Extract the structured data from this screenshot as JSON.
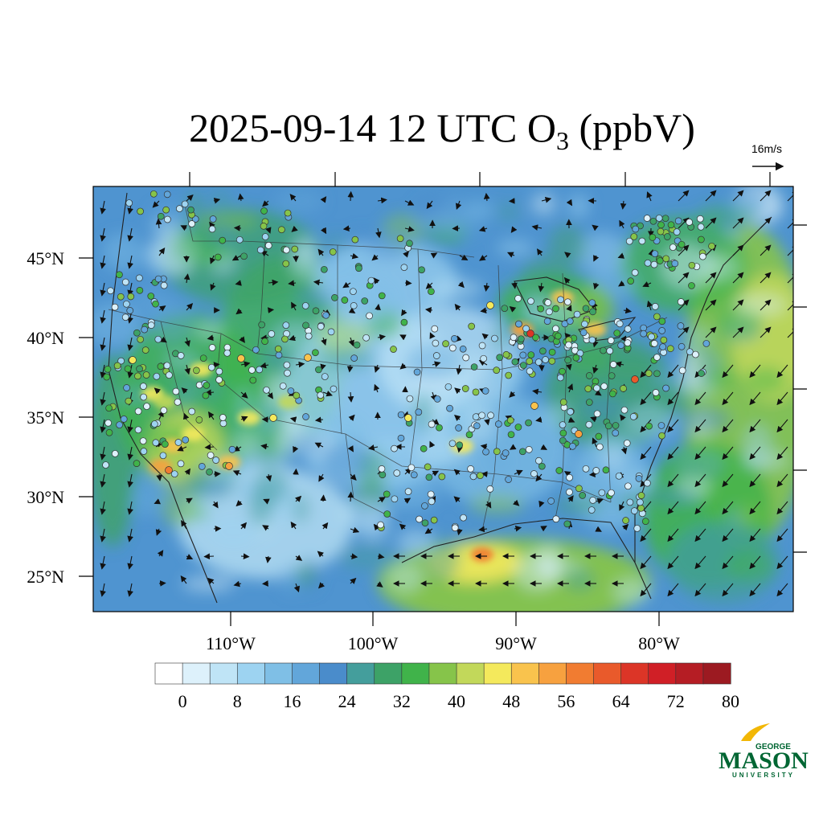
{
  "title": {
    "prefix": "2025-09-14 12 UTC O",
    "subscript": "3",
    "suffix": " (ppbV)"
  },
  "reference_vector": {
    "label": "16m/s"
  },
  "latitude_labels": [
    "25°N",
    "30°N",
    "35°N",
    "40°N",
    "45°N"
  ],
  "longitude_labels": [
    "110°W",
    "100°W",
    "90°W",
    "80°W"
  ],
  "colorbar": {
    "colors": [
      "#ffffff",
      "#ddf1fb",
      "#bfe4f6",
      "#9dd3f1",
      "#7fbfe6",
      "#62a6da",
      "#4a8ccb",
      "#449e9c",
      "#3da267",
      "#40b34a",
      "#86c44a",
      "#c2d85a",
      "#f4e95c",
      "#f9c34d",
      "#f7a13f",
      "#f17c31",
      "#e95a2b",
      "#dc3527",
      "#d01f26",
      "#b51d24",
      "#9c1a21"
    ],
    "tick_labels": [
      "0",
      "8",
      "16",
      "24",
      "32",
      "40",
      "48",
      "56",
      "64",
      "72",
      "80"
    ]
  },
  "logo": {
    "top": "GEORGE",
    "main": "MASON",
    "bottom": "UNIVERSITY"
  }
}
